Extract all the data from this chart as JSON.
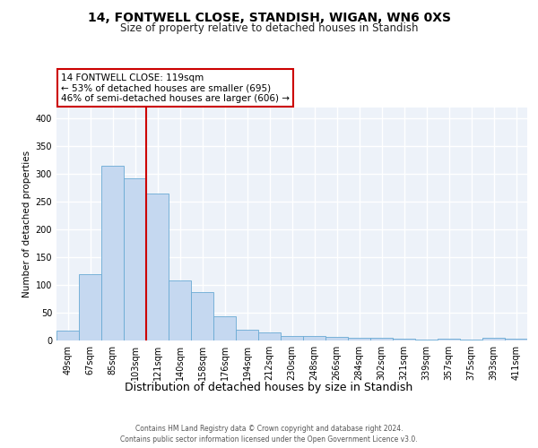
{
  "title_line1": "14, FONTWELL CLOSE, STANDISH, WIGAN, WN6 0XS",
  "title_line2": "Size of property relative to detached houses in Standish",
  "xlabel": "Distribution of detached houses by size in Standish",
  "ylabel": "Number of detached properties",
  "bar_labels": [
    "49sqm",
    "67sqm",
    "85sqm",
    "103sqm",
    "121sqm",
    "140sqm",
    "158sqm",
    "176sqm",
    "194sqm",
    "212sqm",
    "230sqm",
    "248sqm",
    "266sqm",
    "284sqm",
    "302sqm",
    "321sqm",
    "339sqm",
    "357sqm",
    "375sqm",
    "393sqm",
    "411sqm"
  ],
  "bar_values": [
    18,
    120,
    315,
    293,
    265,
    109,
    88,
    44,
    20,
    15,
    8,
    8,
    7,
    5,
    5,
    3,
    2,
    3,
    2,
    5,
    3
  ],
  "bar_color": "#c5d8f0",
  "bar_edge_color": "#6aaad4",
  "background_color": "#edf2f9",
  "grid_color": "#ffffff",
  "annotation_line1": "14 FONTWELL CLOSE: 119sqm",
  "annotation_line2": "← 53% of detached houses are smaller (695)",
  "annotation_line3": "46% of semi-detached houses are larger (606) →",
  "annotation_box_facecolor": "white",
  "annotation_box_edgecolor": "#cc0000",
  "vline_x": 3.5,
  "vline_color": "#cc0000",
  "ylim": [
    0,
    420
  ],
  "yticks": [
    0,
    50,
    100,
    150,
    200,
    250,
    300,
    350,
    400
  ],
  "title_fontsize": 10,
  "subtitle_fontsize": 8.5,
  "ylabel_fontsize": 7.5,
  "xlabel_fontsize": 9,
  "tick_fontsize": 7,
  "annotation_fontsize": 7.5,
  "footer_fontsize": 5.5,
  "footer_line1": "Contains HM Land Registry data © Crown copyright and database right 2024.",
  "footer_line2": "Contains public sector information licensed under the Open Government Licence v3.0."
}
